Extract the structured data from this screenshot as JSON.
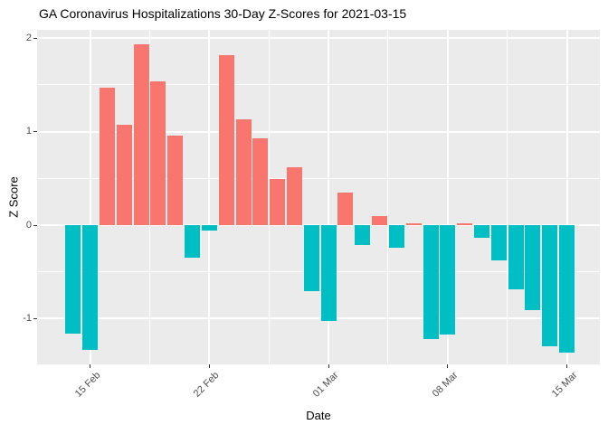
{
  "title": "GA Coronavirus Hospitalizations 30-Day Z-Scores for 2021-03-15",
  "chart_data": {
    "type": "bar",
    "title": "GA Coronavirus Hospitalizations 30-Day Z-Scores for 2021-03-15",
    "xlabel": "Date",
    "ylabel": "Z Score",
    "categories": [
      "14 Feb",
      "15 Feb",
      "16 Feb",
      "17 Feb",
      "18 Feb",
      "19 Feb",
      "20 Feb",
      "21 Feb",
      "22 Feb",
      "23 Feb",
      "24 Feb",
      "25 Feb",
      "26 Feb",
      "27 Feb",
      "28 Feb",
      "01 Mar",
      "02 Mar",
      "03 Mar",
      "04 Mar",
      "05 Mar",
      "06 Mar",
      "07 Mar",
      "08 Mar",
      "09 Mar",
      "10 Mar",
      "11 Mar",
      "12 Mar",
      "13 Mar",
      "14 Mar",
      "15 Mar"
    ],
    "values": [
      -1.16,
      -1.34,
      1.47,
      1.07,
      1.94,
      1.54,
      0.96,
      -0.35,
      -0.06,
      1.82,
      1.13,
      0.93,
      0.49,
      0.62,
      -0.71,
      -1.03,
      0.35,
      -0.21,
      0.1,
      -0.24,
      0.02,
      -1.22,
      -1.17,
      0.02,
      -0.14,
      -0.38,
      -0.69,
      -0.91,
      -1.3,
      -1.36
    ],
    "x_tick_labels": [
      "15 Feb",
      "22 Feb",
      "01 Mar",
      "08 Mar",
      "15 Mar"
    ],
    "x_tick_indices": [
      1,
      8,
      15,
      22,
      29
    ],
    "x_minor_indices": [
      4.5,
      11.5,
      18.5,
      25.5
    ],
    "y_tick_labels": [
      "2",
      "1",
      "0",
      "-1"
    ],
    "y_ticks": [
      2,
      1,
      0,
      -1
    ],
    "y_minor_ticks": [
      1.5,
      0.5,
      -0.5
    ],
    "ylim": [
      -1.49,
      2.09
    ],
    "grid": "on",
    "legend": "none",
    "colors": {
      "positive_bar": "#F8766D",
      "negative_bar": "#00BFC4",
      "panel_background": "#EBEBEB",
      "gridline": "#FFFFFF",
      "tick_text": "#4D4D4D",
      "title_text": "#000000"
    }
  }
}
